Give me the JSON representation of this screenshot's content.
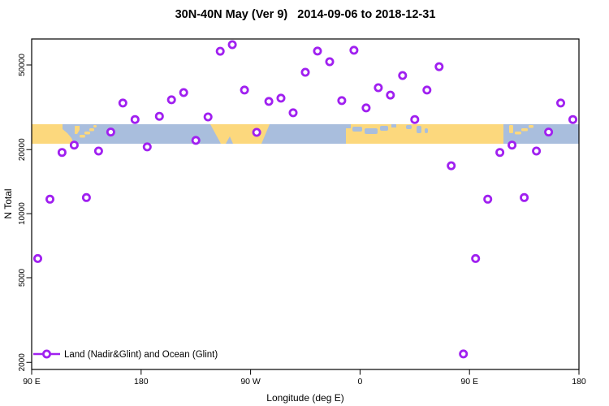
{
  "title": "30N-40N May (Ver 9)   2014-09-06 to 2018-12-31",
  "axes": {
    "x_label": "Longitude (deg E)",
    "y_label": "N Total",
    "x_tick_labels": [
      "90 E",
      "180",
      "90 W",
      "0",
      "90 E",
      "180"
    ],
    "y_tick_labels": [
      "50000",
      "20000",
      "10000",
      "5000",
      "2000"
    ]
  },
  "legend": {
    "label": "Land (Nadir&Glint) and Ocean (Glint)"
  },
  "colors": {
    "marker": "#A020F0",
    "land": "#FCD87D",
    "ocean": "#A9BEDD",
    "text": "#000000",
    "plot_border": "#000000"
  },
  "chart_data": {
    "type": "scatter",
    "title": "30N-40N May (Ver 9)   2014-09-06 to 2018-12-31",
    "xlabel": "Longitude (deg E)",
    "ylabel": "N Total",
    "y_scale": "log10",
    "ylim": [
      1850,
      66000
    ],
    "grid": false,
    "legend_position": "bottom-left",
    "x_axis": {
      "start_longitude": "90 E",
      "span_deg": 450,
      "tick_offsets_deg": [
        0,
        90,
        180,
        270,
        360,
        450
      ],
      "tick_labels": [
        "90 E",
        "180",
        "90 W",
        "0",
        "90 E",
        "180"
      ],
      "note": "axis wraps eastward from 90E around the globe to 180; 95E-175E bins appear at both ends"
    },
    "y_ticks": [
      50000,
      20000,
      10000,
      5000,
      2000
    ],
    "series": [
      {
        "name": "Land (Nadir&Glint) and Ocean (Glint)",
        "marker": "open-circle",
        "points_lon_offset_deg_and_n_total": [
          [
            5,
            6150
          ],
          [
            15,
            11700
          ],
          [
            25,
            19400
          ],
          [
            35,
            21000
          ],
          [
            45,
            11900
          ],
          [
            55,
            19700
          ],
          [
            65,
            24200
          ],
          [
            75,
            33100
          ],
          [
            85,
            27700
          ],
          [
            95,
            20600
          ],
          [
            105,
            28700
          ],
          [
            115,
            34300
          ],
          [
            125,
            37100
          ],
          [
            135,
            22100
          ],
          [
            145,
            28500
          ],
          [
            155,
            58000
          ],
          [
            165,
            62300
          ],
          [
            175,
            38100
          ],
          [
            185,
            24100
          ],
          [
            195,
            33700
          ],
          [
            205,
            34900
          ],
          [
            215,
            29800
          ],
          [
            225,
            46200
          ],
          [
            235,
            58100
          ],
          [
            245,
            51800
          ],
          [
            255,
            34000
          ],
          [
            265,
            58600
          ],
          [
            275,
            31400
          ],
          [
            285,
            39100
          ],
          [
            295,
            36100
          ],
          [
            305,
            44600
          ],
          [
            315,
            27700
          ],
          [
            325,
            38100
          ],
          [
            335,
            49100
          ],
          [
            345,
            16800
          ],
          [
            355,
            2190
          ],
          [
            365,
            6150
          ],
          [
            375,
            11700
          ],
          [
            385,
            19400
          ],
          [
            395,
            21000
          ],
          [
            405,
            11900
          ],
          [
            415,
            19700
          ],
          [
            425,
            24200
          ],
          [
            435,
            33100
          ],
          [
            445,
            27700
          ]
        ]
      }
    ],
    "map_band": {
      "description": "world land/ocean strip for latitude 30N-40N drawn across plot",
      "n_total_value_range": [
        21300,
        26600
      ]
    }
  }
}
